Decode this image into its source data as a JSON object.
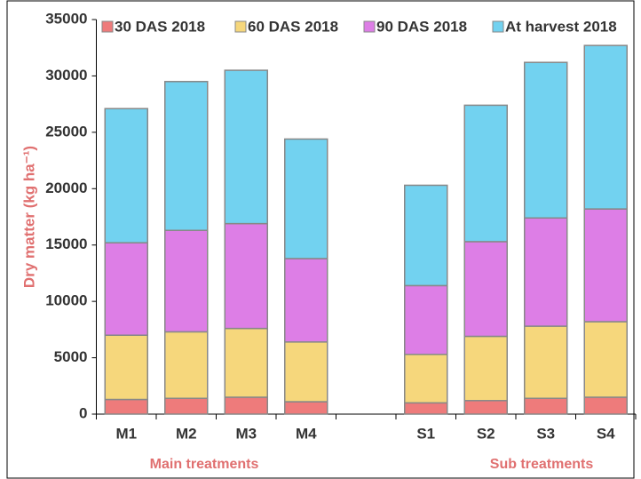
{
  "chart_data": {
    "type": "stacked_bar",
    "y_label": "Dry matter (kg ha⁻¹)",
    "categories": [
      "M1",
      "M2",
      "M3",
      "M4",
      null,
      "S1",
      "S2",
      "S3",
      "S4"
    ],
    "series": [
      {
        "name": "30 DAS 2018",
        "color": "#ee7b7b",
        "values": [
          1300,
          1400,
          1500,
          1100,
          null,
          1000,
          1200,
          1400,
          1500
        ]
      },
      {
        "name": "60 DAS 2018",
        "color": "#f6d77c",
        "values": [
          5700,
          5900,
          6100,
          5300,
          null,
          4300,
          5700,
          6400,
          6700
        ]
      },
      {
        "name": "90 DAS 2018",
        "color": "#dd7ee6",
        "values": [
          8200,
          9000,
          9300,
          7400,
          null,
          6100,
          8400,
          9600,
          10000
        ]
      },
      {
        "name": "At harvest 2018",
        "color": "#72d2f0",
        "values": [
          11900,
          13200,
          13600,
          10600,
          null,
          8900,
          12100,
          13800,
          14500
        ]
      }
    ],
    "annotations": [
      "Main treatments",
      "Sub treatments"
    ],
    "ylim": [
      0,
      35000
    ],
    "yticks": [
      0,
      5000,
      10000,
      15000,
      20000,
      25000,
      30000,
      35000
    ],
    "legend": "top"
  }
}
